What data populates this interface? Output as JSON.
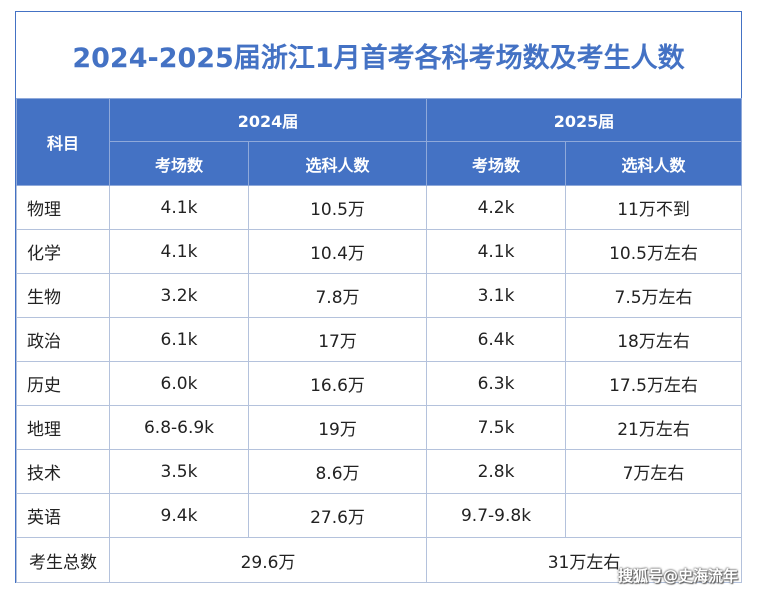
{
  "title": "2024-2025届浙江1月首考各科考场数及考生人数",
  "header": {
    "subject": "科目",
    "year2024": "2024届",
    "year2025": "2025届",
    "rooms": "考场数",
    "students": "选科人数"
  },
  "rows": [
    {
      "subject": "物理",
      "rooms_2024": "4.1k",
      "students_2024": "10.5万",
      "rooms_2025": "4.2k",
      "students_2025": "11万不到"
    },
    {
      "subject": "化学",
      "rooms_2024": "4.1k",
      "students_2024": "10.4万",
      "rooms_2025": "4.1k",
      "students_2025": "10.5万左右"
    },
    {
      "subject": "生物",
      "rooms_2024": "3.2k",
      "students_2024": "7.8万",
      "rooms_2025": "3.1k",
      "students_2025": "7.5万左右"
    },
    {
      "subject": "政治",
      "rooms_2024": "6.1k",
      "students_2024": "17万",
      "rooms_2025": "6.4k",
      "students_2025": "18万左右"
    },
    {
      "subject": "历史",
      "rooms_2024": "6.0k",
      "students_2024": "16.6万",
      "rooms_2025": "6.3k",
      "students_2025": "17.5万左右"
    },
    {
      "subject": "地理",
      "rooms_2024": "6.8-6.9k",
      "students_2024": "19万",
      "rooms_2025": "7.5k",
      "students_2025": "21万左右"
    },
    {
      "subject": "技术",
      "rooms_2024": "3.5k",
      "students_2024": "8.6万",
      "rooms_2025": "2.8k",
      "students_2025": "7万左右"
    },
    {
      "subject": "英语",
      "rooms_2024": "9.4k",
      "students_2024": "27.6万",
      "rooms_2025": "9.7-9.8k",
      "students_2025": ""
    }
  ],
  "total": {
    "label": "考生总数",
    "value_2024": "29.6万",
    "value_2025": "31万左右"
  },
  "watermark": "搜狐号@史海流年"
}
